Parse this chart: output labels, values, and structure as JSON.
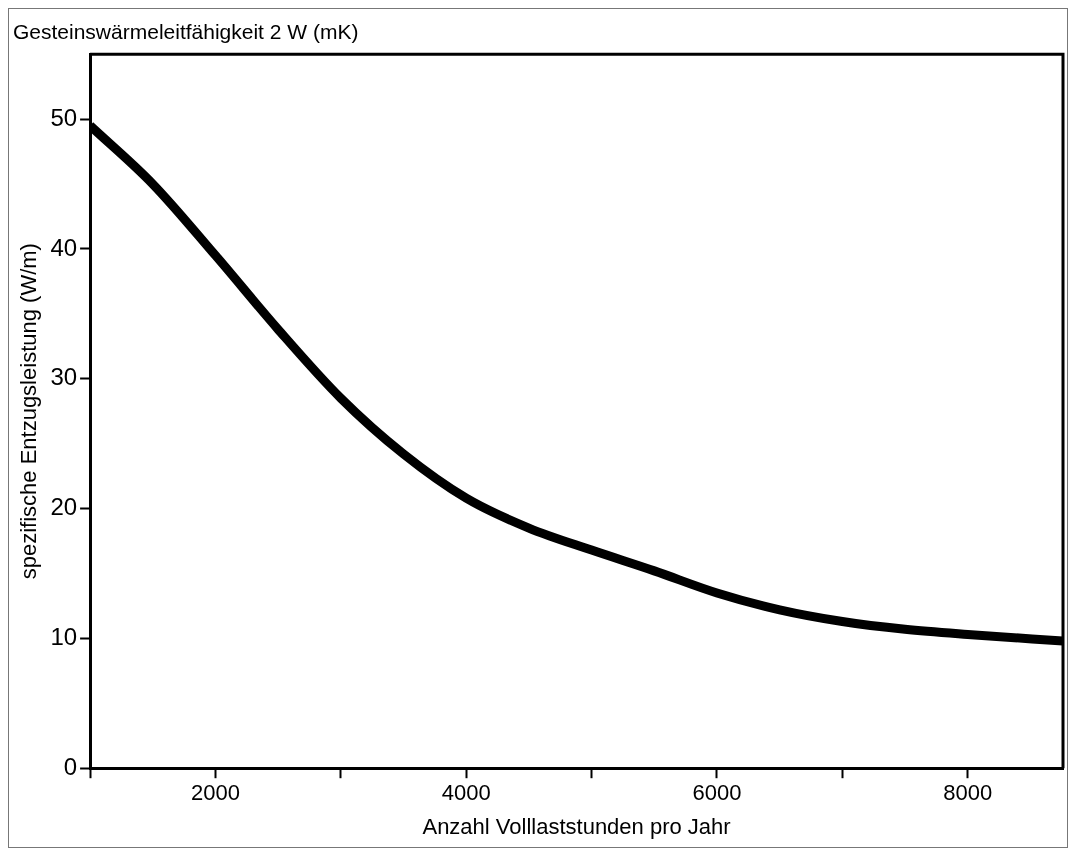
{
  "chart_data": {
    "type": "line",
    "title": "Gesteinswärmeleitfähigkeit 2 W (mK)",
    "xlabel": "Anzahl Volllaststunden pro Jahr",
    "ylabel": "spezifische Entzugsleistung (W/m)",
    "x": [
      1000,
      1500,
      2000,
      2500,
      3000,
      3500,
      4000,
      4500,
      5000,
      5500,
      6000,
      6500,
      7000,
      7500,
      8000,
      8760
    ],
    "series": [
      {
        "color": "#000000",
        "values": [
          49.5,
          45,
          39.5,
          33.8,
          28.5,
          24.2,
          20.8,
          18.5,
          16.8,
          15.2,
          13.5,
          12.2,
          11.3,
          10.7,
          10.3,
          9.8
        ]
      }
    ],
    "xlim": [
      1000,
      8760
    ],
    "xticks": [
      {
        "value": 1000,
        "label": null
      },
      2000,
      {
        "value": 3000,
        "label": null
      },
      4000,
      {
        "value": 5000,
        "label": null
      },
      6000,
      {
        "value": 7000,
        "label": null
      },
      8000
    ],
    "ylim": [
      0,
      55
    ],
    "yticks": [
      0,
      10,
      20,
      30,
      40,
      50
    ],
    "grid": false,
    "legend": false,
    "marker": "none",
    "line_style": "solid"
  }
}
